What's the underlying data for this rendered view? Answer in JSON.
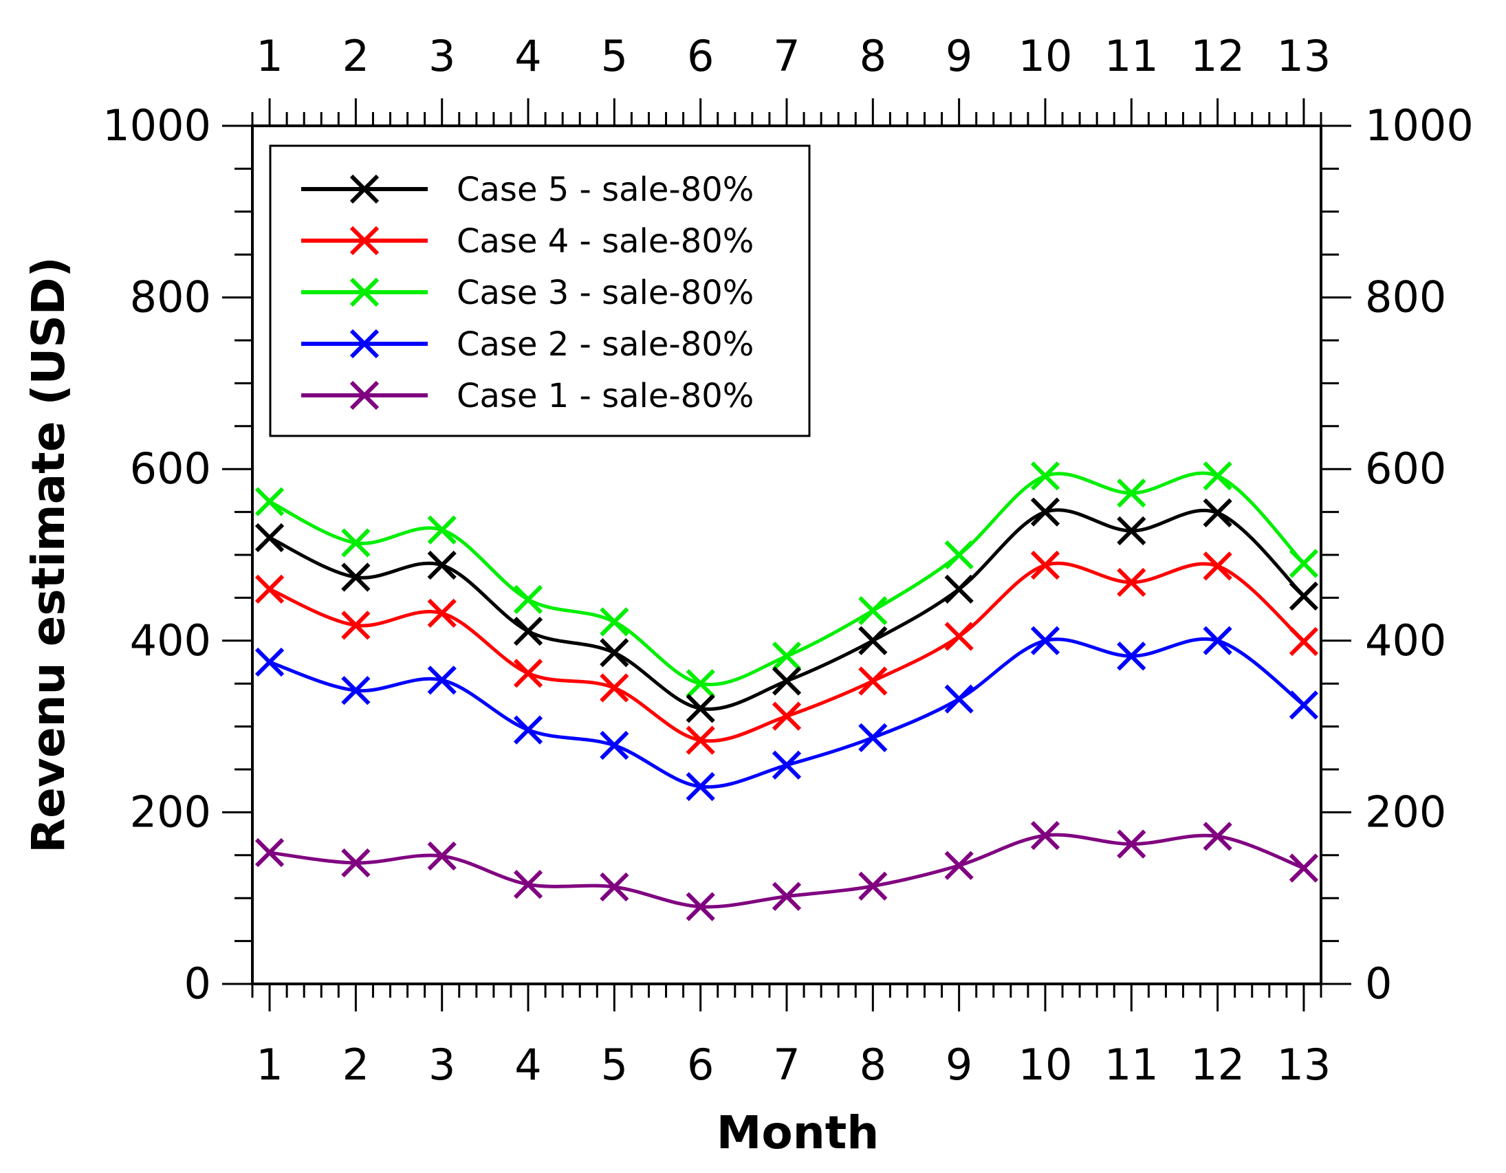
{
  "chart_data": {
    "type": "line",
    "title": "",
    "xlabel": "Month",
    "ylabel": "Revenu estimate (USD)",
    "x": [
      1,
      2,
      3,
      4,
      5,
      6,
      7,
      8,
      9,
      10,
      11,
      12,
      13
    ],
    "xlim": [
      0.8,
      13.2
    ],
    "ylim": [
      0,
      1000
    ],
    "yticks": [
      0,
      200,
      400,
      600,
      800,
      1000
    ],
    "grid": false,
    "legend_position": "top-left",
    "marker": "x",
    "series": [
      {
        "name": "Case 5 - sale-80%",
        "color": "#000000",
        "values": [
          520,
          474,
          488,
          411,
          386,
          321,
          353,
          400,
          460,
          550,
          528,
          549,
          452
        ]
      },
      {
        "name": "Case 4 - sale-80%",
        "color": "#ff0000",
        "values": [
          460,
          418,
          432,
          362,
          345,
          284,
          312,
          353,
          405,
          488,
          468,
          487,
          399
        ]
      },
      {
        "name": "Case 3 - sale-80%",
        "color": "#00ee00",
        "values": [
          562,
          514,
          529,
          448,
          422,
          350,
          382,
          435,
          500,
          592,
          572,
          592,
          490
        ]
      },
      {
        "name": "Case 2 - sale-80%",
        "color": "#0000ff",
        "values": [
          375,
          342,
          354,
          296,
          278,
          230,
          255,
          287,
          332,
          400,
          382,
          400,
          325
        ]
      },
      {
        "name": "Case 1 - sale-80%",
        "color": "#800080",
        "values": [
          153,
          141,
          149,
          116,
          113,
          90,
          102,
          114,
          138,
          173,
          163,
          172,
          135
        ]
      }
    ]
  }
}
